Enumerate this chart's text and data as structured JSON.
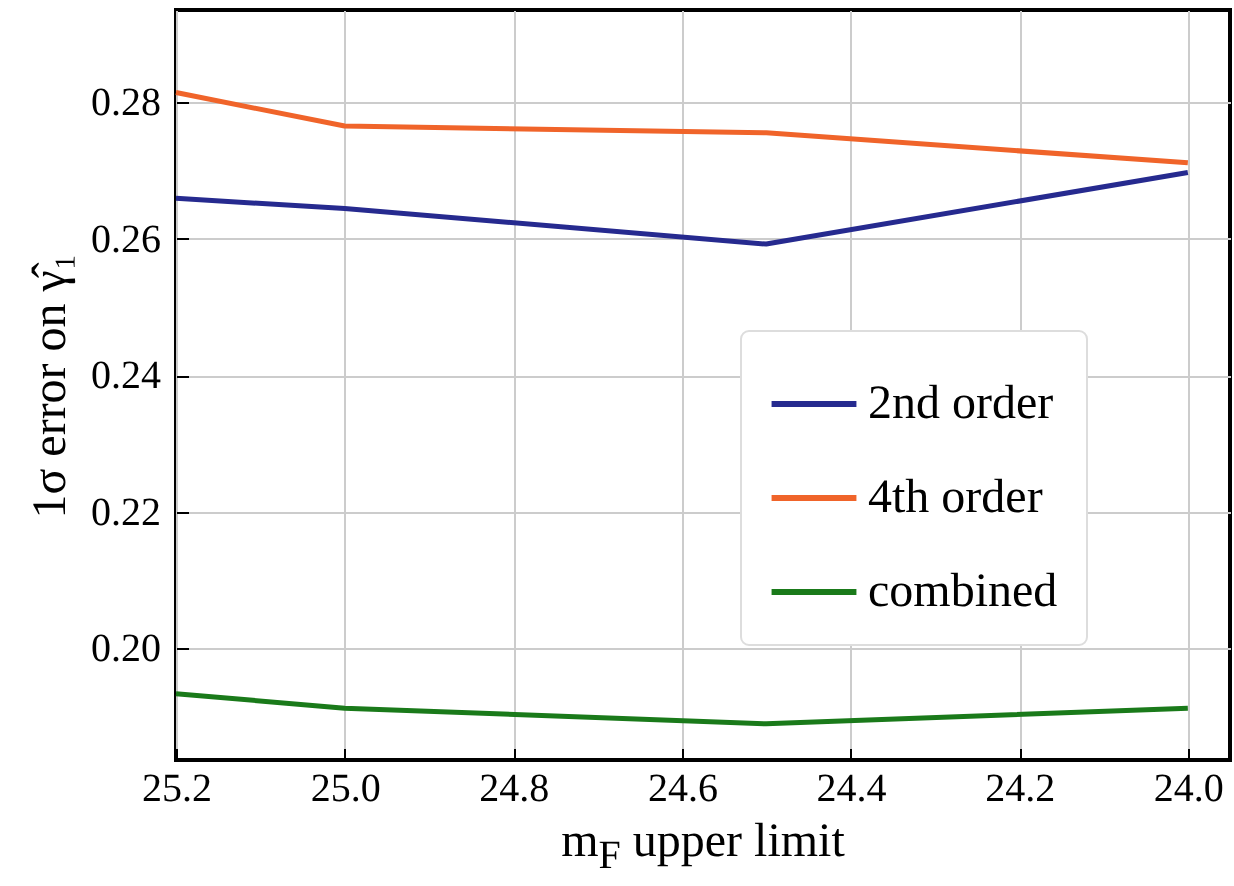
{
  "chart_data": {
    "type": "line",
    "xlabel": "m$_{F}$ upper limit",
    "ylabel": "1σ error on γ̂₁",
    "x": [
      25.2,
      25.0,
      24.5,
      24.0
    ],
    "series": [
      {
        "name": "2nd order",
        "color": "#262a8f",
        "values": [
          0.2659,
          0.2644,
          0.2592,
          0.2697
        ]
      },
      {
        "name": "4th order",
        "color": "#f0642a",
        "values": [
          0.2814,
          0.2765,
          0.2755,
          0.2711
        ]
      },
      {
        "name": "combined",
        "color": "#1a7a1a",
        "values": [
          0.1933,
          0.1912,
          0.1889,
          0.1912
        ]
      }
    ],
    "xlim": [
      25.2,
      23.95
    ],
    "xticks": [
      {
        "value": 25.2,
        "label": "25.2"
      },
      {
        "value": 25.0,
        "label": "25.0"
      },
      {
        "value": 24.8,
        "label": "24.8"
      },
      {
        "value": 24.6,
        "label": "24.6"
      },
      {
        "value": 24.4,
        "label": "24.4"
      },
      {
        "value": 24.2,
        "label": "24.2"
      },
      {
        "value": 24.0,
        "label": "24.0"
      }
    ],
    "ylim": [
      0.1836,
      0.2935
    ],
    "yticks": [
      {
        "value": 0.2,
        "label": "0.20"
      },
      {
        "value": 0.22,
        "label": "0.22"
      },
      {
        "value": 0.24,
        "label": "0.24"
      },
      {
        "value": 0.26,
        "label": "0.26"
      },
      {
        "value": 0.28,
        "label": "0.28"
      }
    ],
    "grid": true,
    "legend": "right"
  }
}
